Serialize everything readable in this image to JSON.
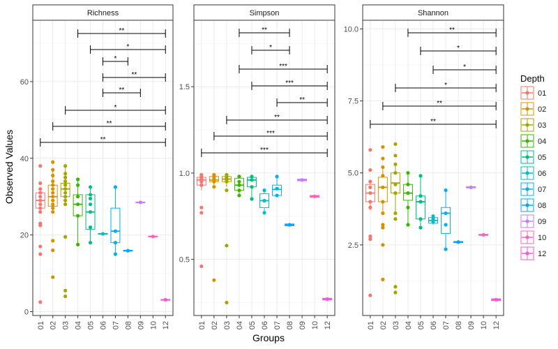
{
  "figure": {
    "xlabel": "Groups",
    "ylabel": "Observed Values",
    "legend_title": "Depth",
    "legend_placement": "right"
  },
  "chart_data": [
    {
      "type": "box",
      "title": "Richness",
      "categories": [
        "01",
        "02",
        "03",
        "04",
        "05",
        "06",
        "07",
        "08",
        "09",
        "10",
        "12"
      ],
      "ylim": [
        -1,
        76
      ],
      "yticks": [
        0,
        20,
        40,
        60
      ],
      "boxes": [
        {
          "q1": 27,
          "median": 29,
          "q3": 31,
          "low": 26,
          "high": 31
        },
        {
          "q1": 27.5,
          "median": 30,
          "q3": 33,
          "low": 26,
          "high": 37
        },
        {
          "q1": 30,
          "median": 32,
          "q3": 33.5,
          "low": 28,
          "high": 38.5
        },
        {
          "q1": 25,
          "median": 28,
          "q3": 30.5,
          "low": 17.5,
          "high": 34.5
        },
        {
          "q1": 21.5,
          "median": 26,
          "q3": 30.5,
          "low": 18,
          "high": 32.5
        },
        {
          "q1": 20.2,
          "median": 20.3,
          "q3": 20.4,
          "low": 20.2,
          "high": 20.4
        },
        {
          "q1": 18,
          "median": 21,
          "q3": 27,
          "low": 15,
          "high": 32.5
        },
        {
          "q1": 15.8,
          "median": 15.9,
          "q3": 16,
          "low": 15.8,
          "high": 16
        },
        {
          "q1": 28.4,
          "median": 28.5,
          "q3": 28.6,
          "low": 28.4,
          "high": 28.6
        },
        {
          "q1": 19.5,
          "median": 19.6,
          "q3": 19.7,
          "low": 19.5,
          "high": 19.7
        },
        {
          "q1": 3.0,
          "median": 3.1,
          "q3": 3.2,
          "low": 3.0,
          "high": 3.2
        }
      ],
      "points": [
        [
          2.5,
          15,
          17,
          22.5,
          23,
          26,
          27,
          28,
          29,
          30,
          31,
          32,
          33.5,
          38
        ],
        [
          9,
          16,
          18.5,
          26,
          27,
          28,
          29,
          30,
          31,
          32,
          33,
          34,
          35.5,
          37,
          39
        ],
        [
          4,
          5.5,
          19.5,
          28,
          29,
          30,
          31,
          32,
          33,
          34,
          35,
          36,
          38
        ],
        [
          17.5,
          25,
          28,
          30,
          33,
          34.5
        ],
        [
          18,
          22,
          26,
          28,
          29.5,
          30.5,
          32.5
        ],
        [
          20.3
        ],
        [
          15,
          18,
          21,
          32.5
        ],
        [
          15.9
        ],
        [
          28.5
        ],
        [
          19.6
        ],
        [
          3.1
        ]
      ],
      "significance": [
        {
          "from": "04",
          "to": "12",
          "label": "**"
        },
        {
          "from": "05",
          "to": "12",
          "label": "*"
        },
        {
          "from": "06",
          "to": "08",
          "label": "*"
        },
        {
          "from": "06",
          "to": "12",
          "label": "**"
        },
        {
          "from": "06",
          "to": "09",
          "label": "**"
        },
        {
          "from": "03",
          "to": "12",
          "label": "*"
        },
        {
          "from": "02",
          "to": "12",
          "label": "**"
        },
        {
          "from": "01",
          "to": "12",
          "label": "**"
        }
      ]
    },
    {
      "type": "box",
      "title": "Simpson",
      "categories": [
        "01",
        "02",
        "03",
        "04",
        "05",
        "06",
        "07",
        "08",
        "09",
        "10",
        "12"
      ],
      "ylim": [
        0.175,
        1.885
      ],
      "yticks": [
        0.5,
        1.0,
        1.5
      ],
      "boxes": [
        {
          "q1": 0.93,
          "median": 0.96,
          "q3": 0.975,
          "low": 0.9,
          "high": 0.99
        },
        {
          "q1": 0.95,
          "median": 0.96,
          "q3": 0.98,
          "low": 0.92,
          "high": 0.99
        },
        {
          "q1": 0.95,
          "median": 0.965,
          "q3": 0.98,
          "low": 0.92,
          "high": 0.99
        },
        {
          "q1": 0.9,
          "median": 0.93,
          "q3": 0.97,
          "low": 0.87,
          "high": 0.99
        },
        {
          "q1": 0.92,
          "median": 0.96,
          "q3": 0.975,
          "low": 0.85,
          "high": 0.98
        },
        {
          "q1": 0.8,
          "median": 0.84,
          "q3": 0.88,
          "low": 0.77,
          "high": 0.9
        },
        {
          "q1": 0.87,
          "median": 0.905,
          "q3": 0.93,
          "low": 0.87,
          "high": 0.98
        },
        {
          "q1": 0.695,
          "median": 0.7,
          "q3": 0.705,
          "low": 0.695,
          "high": 0.705
        },
        {
          "q1": 0.955,
          "median": 0.96,
          "q3": 0.965,
          "low": 0.955,
          "high": 0.965
        },
        {
          "q1": 0.86,
          "median": 0.865,
          "q3": 0.87,
          "low": 0.86,
          "high": 0.87
        },
        {
          "q1": 0.265,
          "median": 0.27,
          "q3": 0.275,
          "low": 0.265,
          "high": 0.275
        }
      ],
      "points": [
        [
          0.46,
          0.77,
          0.8,
          0.93,
          0.95,
          0.96,
          0.97,
          0.98,
          0.99
        ],
        [
          0.38,
          0.92,
          0.95,
          0.96,
          0.97,
          0.98,
          0.99
        ],
        [
          0.25,
          0.58,
          0.9,
          0.95,
          0.96,
          0.97,
          0.98,
          0.99
        ],
        [
          0.87,
          0.9,
          0.93,
          0.95,
          0.98
        ],
        [
          0.85,
          0.92,
          0.96,
          0.98
        ],
        [
          0.77,
          0.84,
          0.9
        ],
        [
          0.87,
          0.91,
          0.98
        ],
        [
          0.7
        ],
        [
          0.96
        ],
        [
          0.865
        ],
        [
          0.27
        ]
      ],
      "significance": [
        {
          "from": "04",
          "to": "08",
          "label": "**"
        },
        {
          "from": "05",
          "to": "08",
          "label": "*"
        },
        {
          "from": "04",
          "to": "12",
          "label": "***"
        },
        {
          "from": "05",
          "to": "12",
          "label": "***"
        },
        {
          "from": "07",
          "to": "12",
          "label": "**"
        },
        {
          "from": "03",
          "to": "12",
          "label": "**"
        },
        {
          "from": "02",
          "to": "12",
          "label": "***"
        },
        {
          "from": "01",
          "to": "12",
          "label": "***"
        }
      ]
    },
    {
      "type": "box",
      "title": "Shannon",
      "categories": [
        "01",
        "02",
        "03",
        "04",
        "05",
        "06",
        "07",
        "08",
        "09",
        "10",
        "12"
      ],
      "ylim": [
        0.05,
        10.3
      ],
      "yticks": [
        2.5,
        5.0,
        7.5,
        10.0
      ],
      "boxes": [
        {
          "q1": 4.0,
          "median": 4.3,
          "q3": 4.6,
          "low": 3.7,
          "high": 4.7
        },
        {
          "q1": 4.0,
          "median": 4.5,
          "q3": 4.85,
          "low": 3.6,
          "high": 5.2
        },
        {
          "q1": 4.3,
          "median": 4.65,
          "q3": 5.0,
          "low": 3.6,
          "high": 5.3
        },
        {
          "q1": 4.05,
          "median": 4.3,
          "q3": 4.6,
          "low": 3.2,
          "high": 5.0
        },
        {
          "q1": 3.4,
          "median": 4.0,
          "q3": 4.2,
          "low": 3.1,
          "high": 4.9
        },
        {
          "q1": 3.25,
          "median": 3.35,
          "q3": 3.45,
          "low": 3.2,
          "high": 3.5
        },
        {
          "q1": 2.9,
          "median": 3.6,
          "q3": 3.8,
          "low": 2.35,
          "high": 4.4
        },
        {
          "q1": 2.58,
          "median": 2.6,
          "q3": 2.62,
          "low": 2.58,
          "high": 2.62
        },
        {
          "q1": 4.48,
          "median": 4.5,
          "q3": 4.52,
          "low": 4.48,
          "high": 4.52
        },
        {
          "q1": 2.83,
          "median": 2.85,
          "q3": 2.87,
          "low": 2.83,
          "high": 2.87
        },
        {
          "q1": 0.57,
          "median": 0.6,
          "q3": 0.63,
          "low": 0.57,
          "high": 0.63
        }
      ],
      "points": [
        [
          0.75,
          2.7,
          2.8,
          3.8,
          4.0,
          4.3,
          4.5,
          4.7,
          5.1,
          5.8
        ],
        [
          1.3,
          2.5,
          3.1,
          3.2,
          3.6,
          4.0,
          4.5,
          4.9,
          5.2,
          5.5,
          5.9
        ],
        [
          0.85,
          1.05,
          3.4,
          3.6,
          4.3,
          4.6,
          5.0,
          5.3,
          5.6,
          6.0
        ],
        [
          3.2,
          3.8,
          4.3,
          4.6,
          5.0
        ],
        [
          3.1,
          3.4,
          4.0,
          4.2,
          4.9
        ],
        [
          3.3,
          3.4,
          3.5
        ],
        [
          2.35,
          3.2,
          3.6,
          4.4
        ],
        [
          2.6
        ],
        [
          4.5
        ],
        [
          2.85
        ],
        [
          0.6
        ]
      ],
      "significance": [
        {
          "from": "04",
          "to": "12",
          "label": "**"
        },
        {
          "from": "05",
          "to": "12",
          "label": "*"
        },
        {
          "from": "06",
          "to": "12",
          "label": "*"
        },
        {
          "from": "03",
          "to": "12",
          "label": "*"
        },
        {
          "from": "02",
          "to": "12",
          "label": "**"
        },
        {
          "from": "01",
          "to": "12",
          "label": "**"
        }
      ]
    }
  ],
  "legend": {
    "title": "Depth",
    "items": [
      {
        "label": "01",
        "color": "#F8766D"
      },
      {
        "label": "02",
        "color": "#D89000"
      },
      {
        "label": "03",
        "color": "#A3A500"
      },
      {
        "label": "04",
        "color": "#39B600"
      },
      {
        "label": "05",
        "color": "#00BF7D"
      },
      {
        "label": "06",
        "color": "#00BFC4"
      },
      {
        "label": "07",
        "color": "#00B0F6"
      },
      {
        "label": "08",
        "color": "#00A5FF"
      },
      {
        "label": "09",
        "color": "#C77CFF"
      },
      {
        "label": "10",
        "color": "#FF61C3"
      },
      {
        "label": "12",
        "color": "#FF55D0"
      }
    ]
  }
}
